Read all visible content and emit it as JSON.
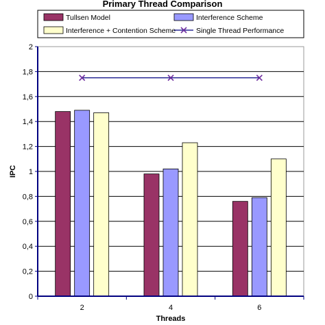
{
  "chart_data": {
    "type": "bar",
    "title": "Primary Thread Comparison",
    "xlabel": "Threads",
    "ylabel": "IPC",
    "categories": [
      "2",
      "4",
      "6"
    ],
    "ylim": [
      0,
      2
    ],
    "yticks": [
      "0",
      "0,2",
      "0,4",
      "0,6",
      "0,8",
      "1",
      "1,2",
      "1,4",
      "1,6",
      "1,8",
      "2"
    ],
    "grid": true,
    "legend_placement": "top",
    "series": [
      {
        "name": "Tullsen Model",
        "values": [
          1.48,
          0.98,
          0.76
        ],
        "color": "#993366"
      },
      {
        "name": "Interference Scheme",
        "values": [
          1.49,
          1.02,
          0.79
        ],
        "color": "#9999ff"
      },
      {
        "name": "Interference + Contention Scheme",
        "values": [
          1.47,
          1.23,
          1.1
        ],
        "color": "#ffffcc"
      }
    ],
    "line_series": {
      "name": "Single Thread Performance",
      "values": [
        1.75,
        1.75,
        1.75
      ],
      "color": "#000080",
      "marker_color": "#7030a0"
    }
  }
}
